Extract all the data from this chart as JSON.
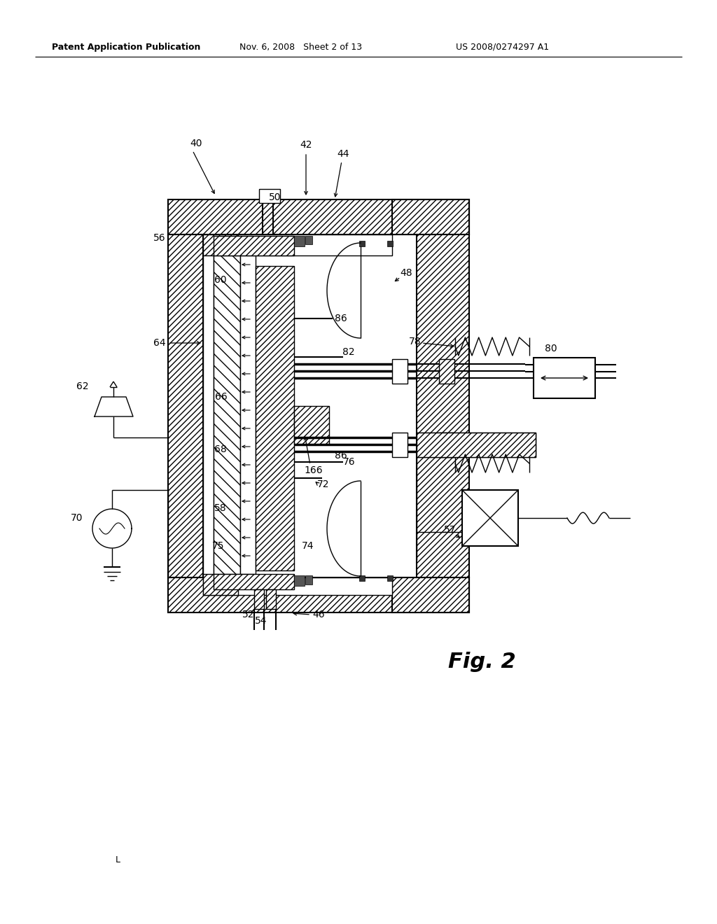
{
  "bg_color": "#ffffff",
  "lc": "#000000",
  "header_left": "Patent Application Publication",
  "header_mid": "Nov. 6, 2008   Sheet 2 of 13",
  "header_right": "US 2008/0274297 A1",
  "fig_label": "Fig. 2"
}
